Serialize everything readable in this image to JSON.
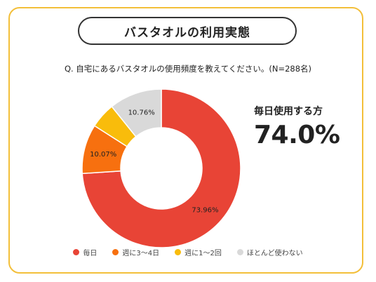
{
  "header": {
    "title": "バスタオルの利用実態",
    "question": "Q. 自宅にあるバスタオルの使用頻度を教えてください。(N=288名)"
  },
  "highlight": {
    "label": "毎日使用する方",
    "value": "74.0%"
  },
  "chart_data": {
    "type": "pie",
    "style": "donut",
    "categories": [
      "毎日",
      "週に3〜4日",
      "週に1〜2回",
      "ほとんど使わない"
    ],
    "values": [
      73.96,
      10.07,
      5.21,
      10.76
    ],
    "data_labels": [
      "73.96%",
      "10.07%",
      "",
      "10.76%"
    ],
    "colors": [
      "#e84436",
      "#f7700f",
      "#f9bc0b",
      "#d9d9d9"
    ],
    "legend_position": "bottom"
  }
}
